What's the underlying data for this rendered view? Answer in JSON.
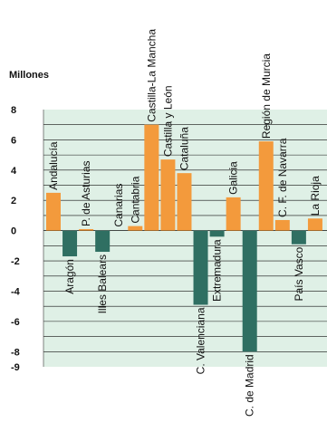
{
  "chart_data": {
    "type": "bar",
    "ylabel": "Millones",
    "yticks": [
      "8",
      "6",
      "4",
      "2",
      "0",
      "-2",
      "-4",
      "-6",
      "-8",
      "-9"
    ],
    "ylim": [
      -9,
      8
    ],
    "gridlines": [
      7,
      6,
      5,
      4,
      3,
      2,
      1,
      -1,
      -2,
      -3,
      -4,
      -5,
      -6,
      -7,
      -8
    ],
    "colors": {
      "positive": "#f39a3c",
      "negative": "#2f6f62",
      "background": "#dff0e6",
      "grid": "#111111"
    },
    "categories": [
      "Andalucía",
      "Aragón",
      "P. de Asturias",
      "Illes Balears",
      "Canarias",
      "Cantabria",
      "Castilla-La Mancha",
      "Castilla y León",
      "Cataluña",
      "C. Valenciana",
      "Extremadura",
      "Galicia",
      "C. de Madrid",
      "Región de Murcia",
      "C. F. de Navarra",
      "País Vasco",
      "La Rioja"
    ],
    "values": [
      2.5,
      -1.7,
      0.1,
      -1.4,
      0.0,
      0.3,
      7.0,
      4.7,
      3.8,
      -4.9,
      -0.4,
      2.2,
      -8.0,
      5.9,
      0.7,
      -0.9,
      0.8
    ]
  }
}
